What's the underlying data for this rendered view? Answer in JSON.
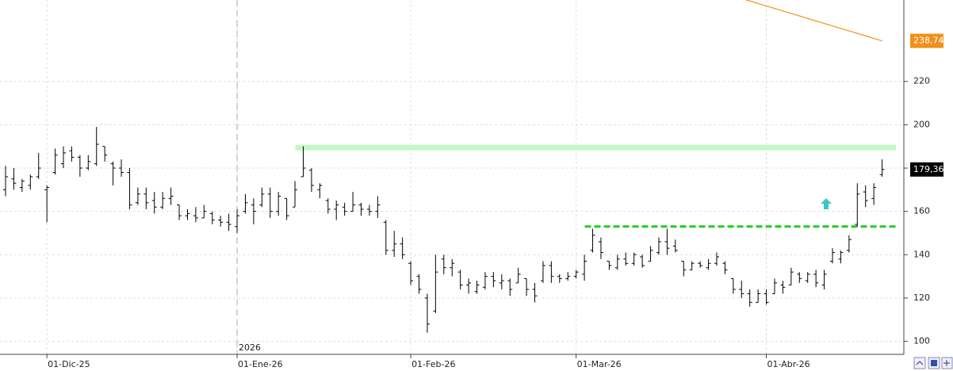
{
  "chart_data": {
    "type": "ohlc",
    "categories": [
      null,
      null,
      null,
      null,
      null,
      "01-Dic-25",
      null,
      null,
      null,
      null,
      null,
      null,
      null,
      null,
      null,
      null,
      null,
      null,
      null,
      null,
      null,
      null,
      null,
      null,
      null,
      null,
      null,
      null,
      "01-Ene-26",
      null,
      null,
      null,
      null,
      null,
      null,
      null,
      null,
      null,
      null,
      null,
      null,
      null,
      null,
      null,
      null,
      null,
      null,
      null,
      null,
      "01-Feb-26",
      null,
      null,
      null,
      null,
      null,
      null,
      null,
      null,
      null,
      null,
      null,
      null,
      null,
      null,
      null,
      null,
      null,
      null,
      null,
      "01-Mar-26",
      null,
      null,
      null,
      null,
      null,
      null,
      null,
      null,
      null,
      null,
      null,
      null,
      null,
      null,
      null,
      null,
      null,
      null,
      null,
      null,
      null,
      null,
      "01-Abr-26",
      null,
      null,
      null,
      null,
      null,
      null,
      null,
      null,
      null,
      null,
      null,
      null,
      null,
      null
    ],
    "series": [
      {
        "color": "#000000",
        "open": [
          170,
          175,
          171,
          172,
          176,
          170,
          178,
          182,
          188,
          185,
          180,
          182,
          190,
          182,
          180,
          178,
          164,
          168,
          165,
          162,
          166,
          163,
          158,
          158,
          157,
          159,
          156,
          155,
          153,
          160,
          163,
          163,
          168,
          160,
          166,
          162,
          176,
          179,
          170,
          165,
          161,
          162,
          160,
          163,
          161,
          160,
          155,
          142,
          145,
          136,
          130,
          120,
          114,
          138,
          134,
          132,
          126,
          123,
          125,
          130,
          127,
          128,
          127,
          129,
          124,
          128,
          135,
          130,
          129,
          130,
          131,
          142,
          146,
          137,
          134,
          138,
          136,
          139,
          137,
          141,
          146,
          144,
          137,
          133,
          136,
          134,
          136,
          136,
          129,
          124,
          122,
          118,
          122,
          122,
          126,
          126,
          131,
          128,
          131,
          126,
          137,
          138,
          142,
          154,
          169,
          166,
          177
        ],
        "high": [
          181,
          180,
          175,
          177,
          187,
          172,
          189,
          190,
          190,
          186,
          186,
          199,
          190,
          183,
          184,
          180,
          171,
          171,
          169,
          169,
          171,
          163,
          161,
          162,
          163,
          160,
          158,
          159,
          161,
          168,
          166,
          171,
          171,
          169,
          166,
          174,
          190,
          180,
          173,
          166,
          165,
          164,
          169,
          164,
          163,
          167,
          156,
          151,
          148,
          137,
          131,
          122,
          140,
          140,
          138,
          133,
          129,
          128,
          132,
          132,
          131,
          129,
          134,
          129,
          127,
          137,
          137,
          131,
          132,
          133,
          140,
          152,
          148,
          137,
          140,
          141,
          141,
          140,
          144,
          148,
          152,
          147,
          137,
          137,
          137,
          138,
          141,
          137,
          129,
          128,
          124,
          124,
          124,
          129,
          128,
          134,
          132,
          132,
          133,
          133,
          143,
          142,
          149,
          173,
          172,
          173,
          184
        ],
        "low": [
          167,
          170,
          169,
          170,
          175,
          155,
          177,
          180,
          183,
          176,
          179,
          181,
          183,
          172,
          176,
          161,
          163,
          161,
          159,
          161,
          163,
          156,
          156,
          155,
          157,
          154,
          153,
          151,
          150,
          159,
          154,
          162,
          157,
          158,
          156,
          162,
          176,
          169,
          166,
          159,
          156,
          158,
          160,
          158,
          158,
          157,
          140,
          139,
          138,
          126,
          122,
          104,
          113,
          131,
          130,
          124,
          122,
          122,
          124,
          125,
          124,
          121,
          127,
          121,
          118,
          127,
          127,
          127,
          128,
          129,
          128,
          141,
          138,
          133,
          133,
          135,
          135,
          134,
          137,
          140,
          140,
          141,
          130,
          133,
          134,
          133,
          135,
          131,
          122,
          120,
          116,
          118,
          117,
          122,
          122,
          126,
          127,
          127,
          125,
          124,
          136,
          136,
          141,
          153,
          162,
          163,
          176
        ],
        "close": [
          176,
          173,
          174,
          176,
          180,
          171,
          186,
          187,
          185,
          180,
          183,
          191,
          186,
          180,
          178,
          163,
          168,
          164,
          162,
          166,
          167,
          158,
          159,
          157,
          160,
          156,
          155,
          154,
          158,
          164,
          160,
          168,
          160,
          167,
          158,
          170,
          180,
          172,
          172,
          161,
          163,
          160,
          163,
          161,
          160,
          163,
          142,
          145,
          140,
          128,
          124,
          108,
          132,
          134,
          136,
          126,
          127,
          126,
          130,
          128,
          128,
          124,
          131,
          124,
          121,
          135,
          130,
          129,
          130,
          132,
          137,
          149,
          141,
          135,
          138,
          136,
          140,
          135,
          142,
          146,
          143,
          142,
          133,
          136,
          135,
          136,
          139,
          133,
          124,
          122,
          118,
          122,
          118,
          127,
          125,
          132,
          129,
          131,
          127,
          131,
          141,
          141,
          147,
          168,
          165,
          171,
          179.36
        ],
        "last_label": {
          "value": 179.36,
          "label": "179,36"
        }
      }
    ],
    "ma": {
      "color": "#f0901a",
      "values": [
        null,
        null,
        null,
        null,
        null,
        null,
        null,
        null,
        null,
        null,
        null,
        null,
        null,
        null,
        null,
        null,
        null,
        null,
        null,
        null,
        null,
        null,
        null,
        null,
        null,
        null,
        null,
        null,
        null,
        null,
        null,
        null,
        null,
        null,
        null,
        null,
        null,
        null,
        null,
        null,
        null,
        null,
        null,
        null,
        null,
        null,
        null,
        null,
        null,
        null,
        null,
        null,
        null,
        null,
        null,
        null,
        null,
        null,
        null,
        null,
        null,
        null,
        null,
        null,
        null,
        null,
        null,
        null,
        null,
        null,
        null,
        null,
        null,
        null,
        null,
        null,
        null,
        null,
        null,
        null,
        null,
        null,
        null,
        null,
        null,
        null,
        null,
        null,
        null,
        258.29,
        257.14,
        255.99,
        254.84,
        253.69,
        252.54,
        251.39,
        250.24,
        249.09,
        247.94,
        246.79,
        245.64,
        244.49,
        243.34,
        242.19,
        241.04,
        239.89,
        238.74
      ],
      "last_label": {
        "value": 238.74,
        "label": "238,74"
      }
    },
    "levels": [
      {
        "value": 189.5,
        "from": 36,
        "color": "#c4f7c4",
        "style": "solid"
      },
      {
        "value": 153,
        "from": 71,
        "color": "#22cc22",
        "style": "dashed"
      }
    ],
    "year_marker": {
      "label": "2026",
      "index": 28
    },
    "ylim": [
      94,
      257.6
    ],
    "yticks": [
      100,
      120,
      140,
      160,
      180,
      200,
      220
    ],
    "grid": true
  }
}
